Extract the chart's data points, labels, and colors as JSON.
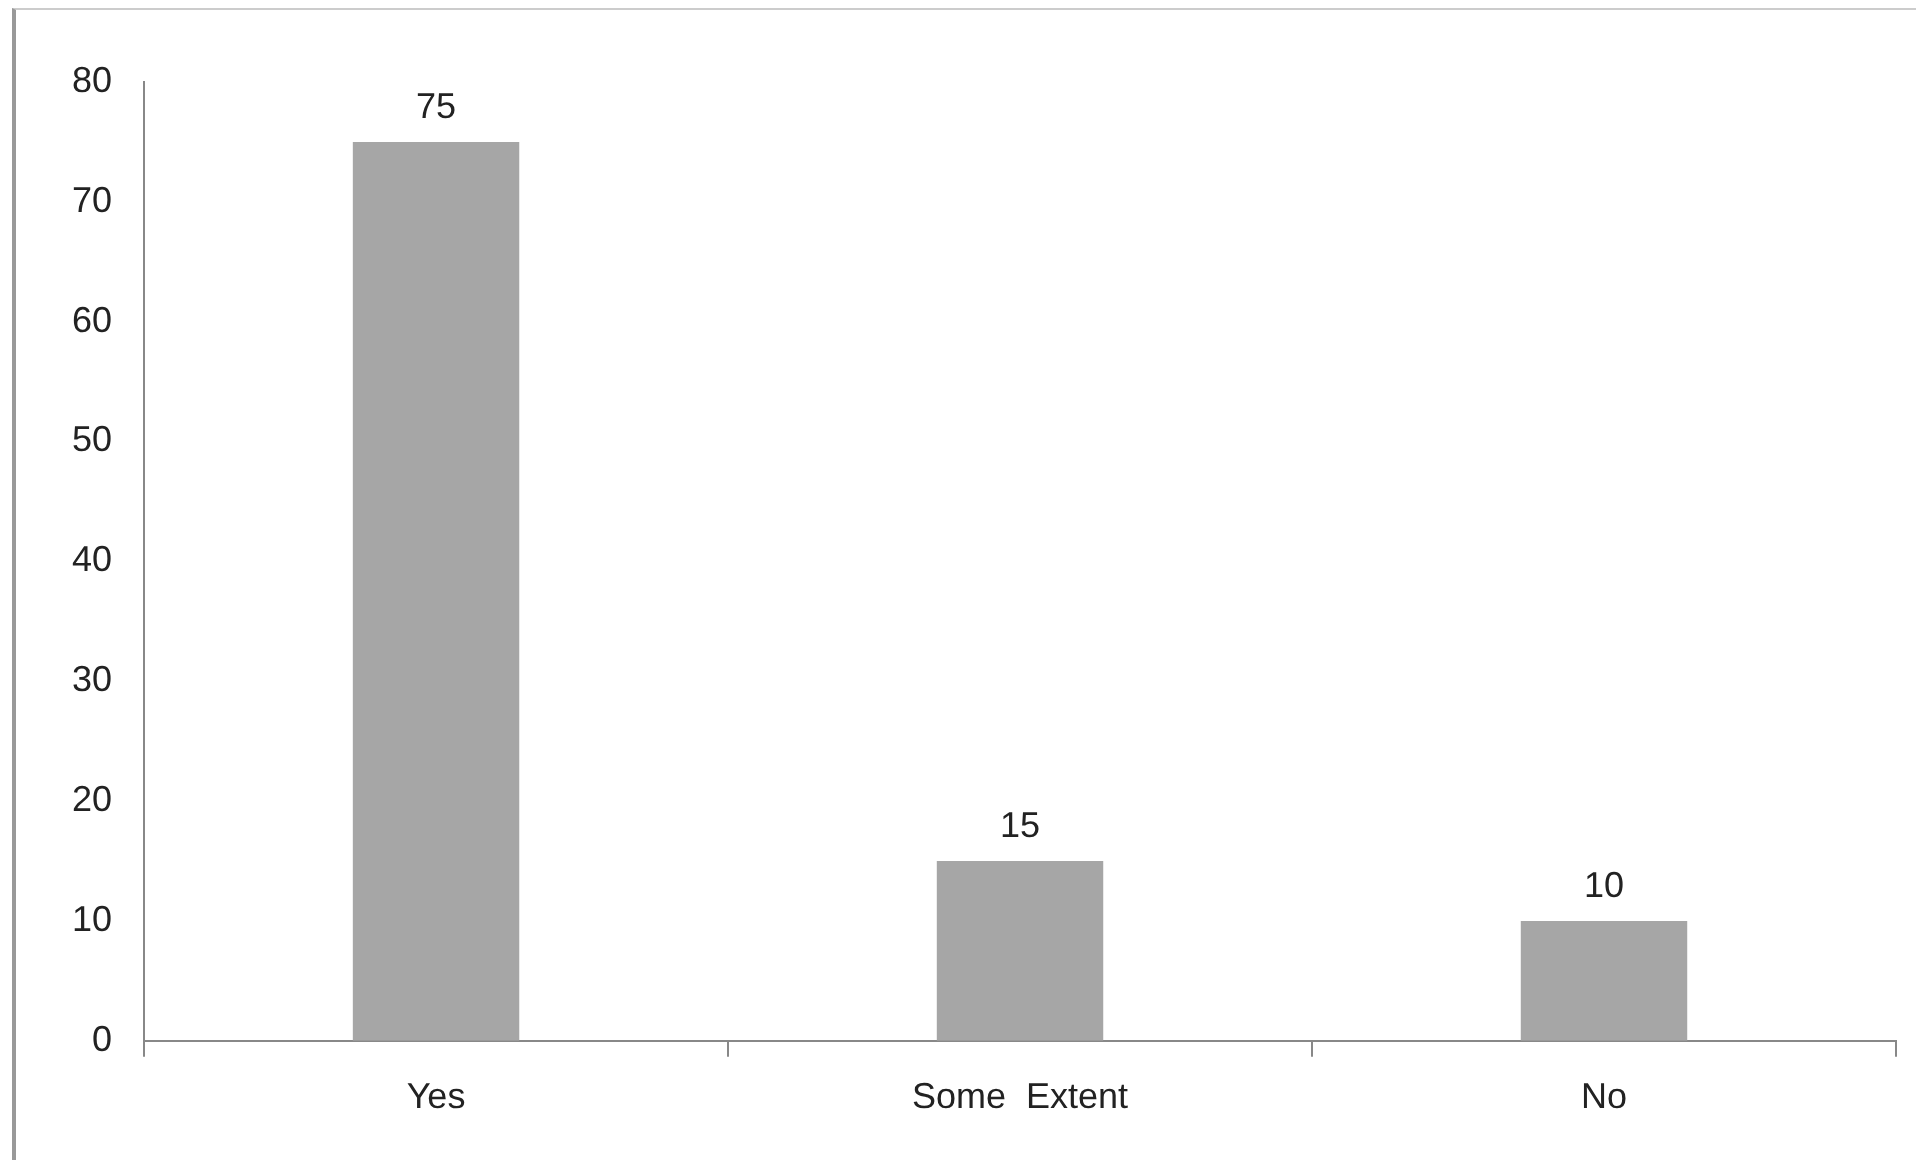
{
  "chart_data": {
    "type": "bar",
    "categories": [
      "Yes",
      "Some  Extent",
      "No"
    ],
    "values": [
      75,
      15,
      10
    ],
    "color": "#a6a6a6",
    "ylim": [
      0,
      80
    ],
    "yticks": [
      0,
      10,
      20,
      30,
      40,
      50,
      60,
      70,
      80
    ],
    "grid": false,
    "legend": false,
    "data_labels": true
  }
}
